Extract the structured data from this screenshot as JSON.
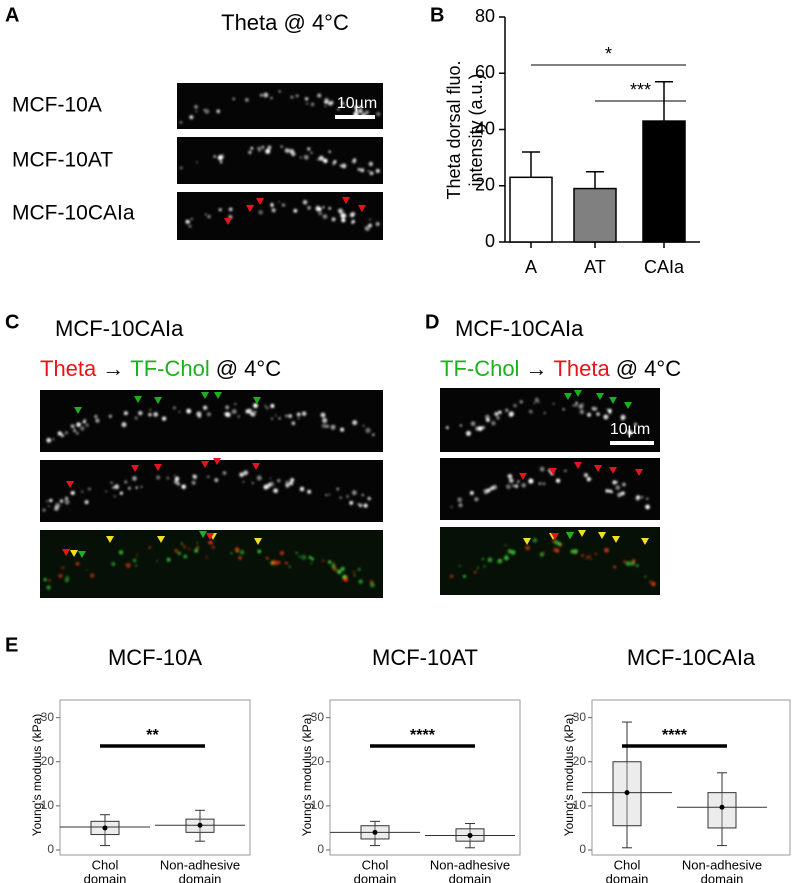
{
  "panels": {
    "A": {
      "label": "A",
      "title": "Theta @ 4°C",
      "rows": [
        "MCF-10A",
        "MCF-10AT",
        "MCF-10CAIa"
      ],
      "scale_bar": "10µm"
    },
    "B": {
      "label": "B"
    },
    "C": {
      "label": "C",
      "title": "MCF-10CAIa",
      "subtitle": [
        {
          "text": "Theta",
          "color": "#e8141b"
        },
        {
          "text": "→",
          "color": "#000000"
        },
        {
          "text": "TF-Chol",
          "color": "#1db01d"
        },
        {
          "text": "@ 4°C",
          "color": "#000000"
        }
      ]
    },
    "D": {
      "label": "D",
      "title": "MCF-10CAIa",
      "subtitle": [
        {
          "text": "TF-Chol",
          "color": "#1db01d"
        },
        {
          "text": "→",
          "color": "#000000"
        },
        {
          "text": "Theta",
          "color": "#e8141b"
        },
        {
          "text": "@ 4°C",
          "color": "#000000"
        }
      ],
      "scale_bar": "10µm"
    },
    "E": {
      "label": "E"
    }
  },
  "chart_data": [
    {
      "type": "bar",
      "ylabel": [
        "Theta dorsal fluo.",
        "intensity (a.u.)"
      ],
      "categories": [
        "A",
        "AT",
        "CAIa"
      ],
      "values": [
        23,
        19,
        43
      ],
      "errors": [
        9,
        6,
        14
      ],
      "colors": [
        "#ffffff",
        "#808080",
        "#000000"
      ],
      "ylim": [
        0,
        80
      ],
      "yticks": [
        0,
        20,
        40,
        60,
        80
      ],
      "annotations": [
        {
          "text": "*",
          "from": "A",
          "to": "CAIa"
        },
        {
          "text": "***",
          "from": "AT",
          "to": "CAIa"
        }
      ]
    },
    {
      "type": "box",
      "title": "MCF-10A",
      "ylabel": "Young's modulus (kPa)",
      "categories": [
        [
          "Chol",
          "domain"
        ],
        [
          "Non-adhesive",
          "domain"
        ]
      ],
      "stats": [
        {
          "whislo": 1,
          "q1": 3.5,
          "median": 5.2,
          "q3": 6.5,
          "whishi": 8,
          "mean": 5
        },
        {
          "whislo": 2,
          "q1": 4,
          "median": 5.6,
          "q3": 7,
          "whishi": 9,
          "mean": 5.6
        }
      ],
      "ylim": [
        0,
        34
      ],
      "yticks": [
        0,
        10,
        20,
        30
      ],
      "annotation": "**"
    },
    {
      "type": "box",
      "title": "MCF-10AT",
      "ylabel": "Young's modulus (kPa)",
      "categories": [
        [
          "Chol",
          "domain"
        ],
        [
          "Non-adhesive",
          "domain"
        ]
      ],
      "stats": [
        {
          "whislo": 1,
          "q1": 2.5,
          "median": 4,
          "q3": 5.5,
          "whishi": 6.5,
          "mean": 4
        },
        {
          "whislo": 0.5,
          "q1": 2,
          "median": 3.3,
          "q3": 4.8,
          "whishi": 6,
          "mean": 3.3
        }
      ],
      "ylim": [
        0,
        34
      ],
      "yticks": [
        0,
        10,
        20,
        30
      ],
      "annotation": "****"
    },
    {
      "type": "box",
      "title": "MCF-10CAIa",
      "ylabel": "Young's modulus (kPa)",
      "categories": [
        [
          "Chol",
          "domain"
        ],
        [
          "Non-adhesive",
          "domain"
        ]
      ],
      "stats": [
        {
          "whislo": 0.5,
          "q1": 5.5,
          "median": 13,
          "q3": 20,
          "whishi": 29,
          "mean": 13
        },
        {
          "whislo": 1,
          "q1": 5,
          "median": 9.7,
          "q3": 13,
          "whishi": 17.5,
          "mean": 9.7
        }
      ],
      "ylim": [
        0,
        34
      ],
      "yticks": [
        0,
        10,
        20,
        30
      ],
      "annotation": "****"
    }
  ]
}
